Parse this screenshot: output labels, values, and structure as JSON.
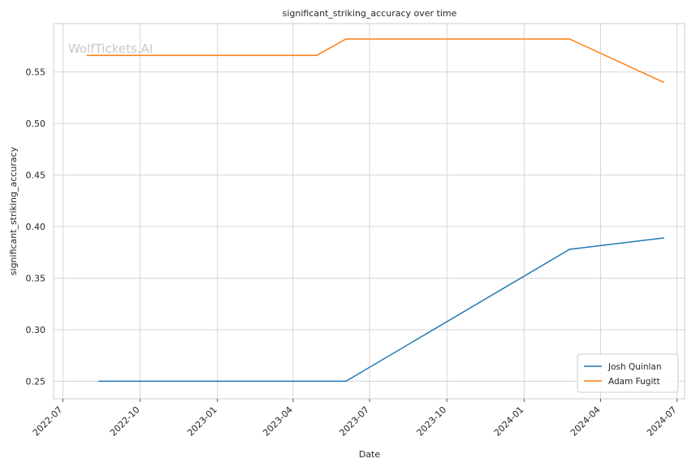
{
  "chart_data": {
    "type": "line",
    "title": "significant_striking_accuracy over time",
    "xlabel": "Date",
    "ylabel": "significant_striking_accuracy",
    "watermark": "WolfTickets.AI",
    "xlim": [
      "2022-06-20",
      "2024-07-10"
    ],
    "ylim": [
      0.233,
      0.597
    ],
    "x_ticks": [
      "2022-07",
      "2022-10",
      "2023-01",
      "2023-04",
      "2023-07",
      "2023-10",
      "2024-01",
      "2024-04",
      "2024-07"
    ],
    "y_ticks": [
      "0.25",
      "0.30",
      "0.35",
      "0.40",
      "0.45",
      "0.50",
      "0.55"
    ],
    "grid": true,
    "legend_position": "bottom-right",
    "series": [
      {
        "name": "Josh Quinlan",
        "color": "#1f77b4",
        "x": [
          "2022-08-13",
          "2023-06-03",
          "2024-02-24",
          "2024-06-15"
        ],
        "y": [
          0.25,
          0.25,
          0.378,
          0.389
        ]
      },
      {
        "name": "Adam Fugitt",
        "color": "#ff7f0e",
        "x": [
          "2022-07-30",
          "2023-04-29",
          "2023-06-03",
          "2024-02-24",
          "2024-06-15"
        ],
        "y": [
          0.566,
          0.566,
          0.582,
          0.582,
          0.54
        ]
      }
    ]
  }
}
